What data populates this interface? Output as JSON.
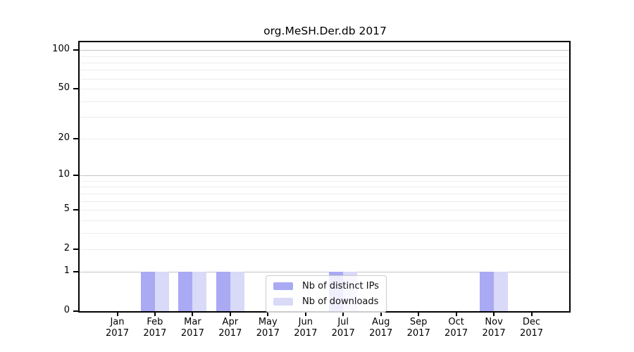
{
  "chart_data": {
    "type": "bar",
    "title": "org.MeSH.Der.db 2017",
    "categories": [
      "Jan",
      "Feb",
      "Mar",
      "Apr",
      "May",
      "Jun",
      "Jul",
      "Aug",
      "Sep",
      "Oct",
      "Nov",
      "Dec"
    ],
    "x_year_label": "2017",
    "series": [
      {
        "name": "Nb of distinct IPs",
        "color": "#a9a9f4",
        "values": [
          0,
          1,
          1,
          1,
          0,
          0,
          1,
          0,
          0,
          0,
          1,
          0
        ]
      },
      {
        "name": "Nb of downloads",
        "color": "#d9d9f8",
        "values": [
          0,
          1,
          1,
          1,
          0,
          0,
          1,
          0,
          0,
          0,
          1,
          0
        ]
      }
    ],
    "y_scale": "log1p",
    "ylim": [
      0,
      115
    ],
    "y_ticks": [
      0,
      1,
      2,
      5,
      10,
      20,
      50,
      100
    ],
    "y_minor_gridlines": [
      3,
      4,
      6,
      7,
      8,
      9,
      30,
      40,
      60,
      70,
      80,
      90
    ],
    "decade_gridline_values": [
      1,
      10,
      100
    ],
    "decade_gridline_color": "#c4c4c4",
    "minor_gridline_color": "#ededed",
    "axis_color": "#000000",
    "grid": true,
    "legend_position": "bottom-center"
  }
}
